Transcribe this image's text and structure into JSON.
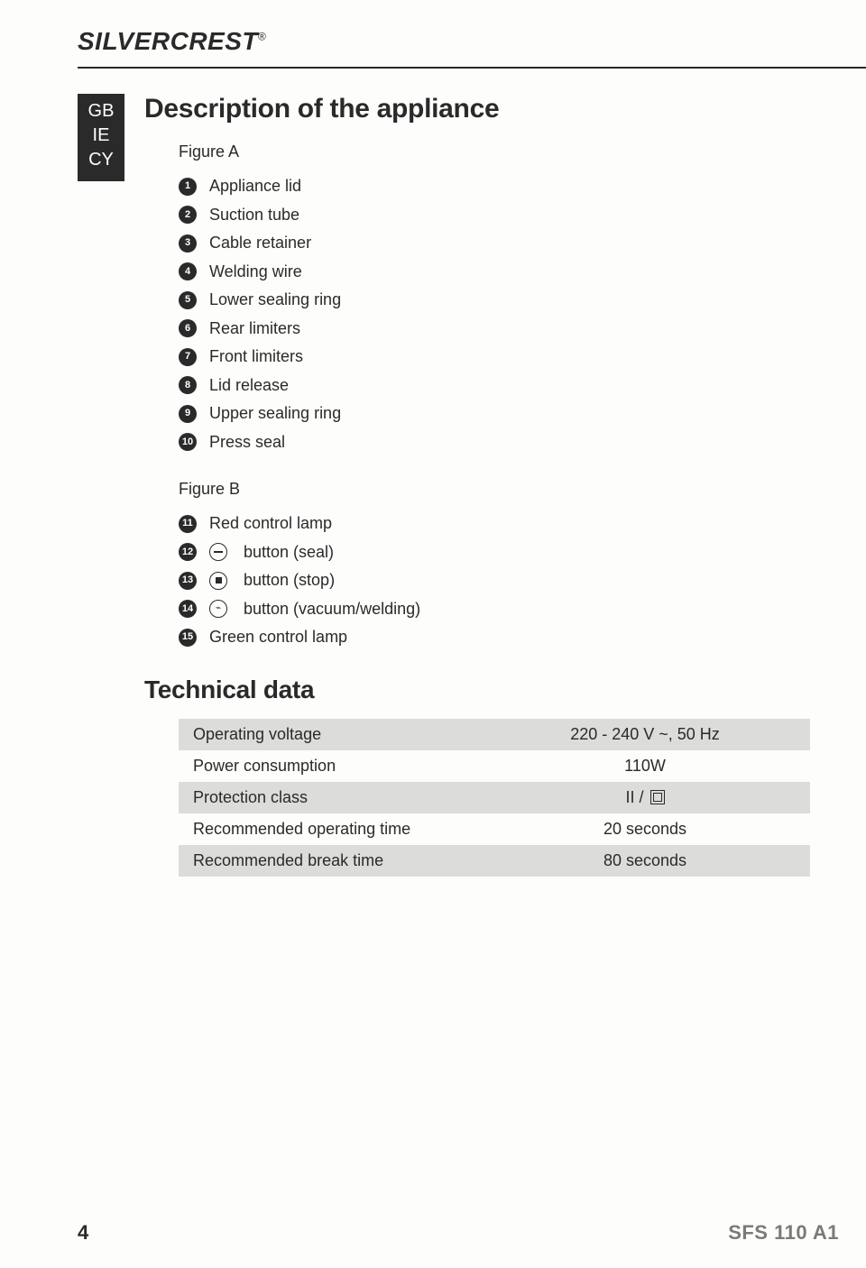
{
  "brand": {
    "part1": "SILVER",
    "part2": "CREST",
    "reg": "®"
  },
  "sidebar": {
    "items": [
      "GB",
      "IE",
      "CY"
    ]
  },
  "section1": {
    "title": "Description of the appliance",
    "figureA": {
      "label": "Figure A",
      "items": [
        {
          "n": "1",
          "text": "Appliance lid"
        },
        {
          "n": "2",
          "text": "Suction tube"
        },
        {
          "n": "3",
          "text": "Cable retainer"
        },
        {
          "n": "4",
          "text": "Welding wire"
        },
        {
          "n": "5",
          "text": "Lower sealing ring"
        },
        {
          "n": "6",
          "text": "Rear limiters"
        },
        {
          "n": "7",
          "text": "Front limiters"
        },
        {
          "n": "8",
          "text": "Lid release"
        },
        {
          "n": "9",
          "text": "Upper sealing ring"
        },
        {
          "n": "10",
          "text": "Press seal"
        }
      ]
    },
    "figureB": {
      "label": "Figure B",
      "items": [
        {
          "n": "11",
          "text": "Red control lamp",
          "icon": null
        },
        {
          "n": "12",
          "text": "button (seal)",
          "icon": "seal"
        },
        {
          "n": "13",
          "text": "button (stop)",
          "icon": "stop"
        },
        {
          "n": "14",
          "text": "button (vacuum/welding)",
          "icon": "vacuum"
        },
        {
          "n": "15",
          "text": "Green control lamp",
          "icon": null
        }
      ]
    }
  },
  "section2": {
    "title": "Technical data",
    "rows": [
      {
        "label": "Operating voltage",
        "value": "220 - 240 V ~, 50 Hz",
        "class2": false
      },
      {
        "label": "Power consumption",
        "value": "110W",
        "class2": false
      },
      {
        "label": "Protection class",
        "value": "II /",
        "class2": true
      },
      {
        "label": "Recommended operating time",
        "value": "20 seconds",
        "class2": false
      },
      {
        "label": "Recommended break time",
        "value": "80 seconds",
        "class2": false
      }
    ]
  },
  "footer": {
    "page": "4",
    "model": "SFS 110 A1"
  },
  "colors": {
    "text": "#2a2a2a",
    "bg": "#fdfdfb",
    "row_shade": "#dcdcda",
    "model_grey": "#7a7a78"
  }
}
